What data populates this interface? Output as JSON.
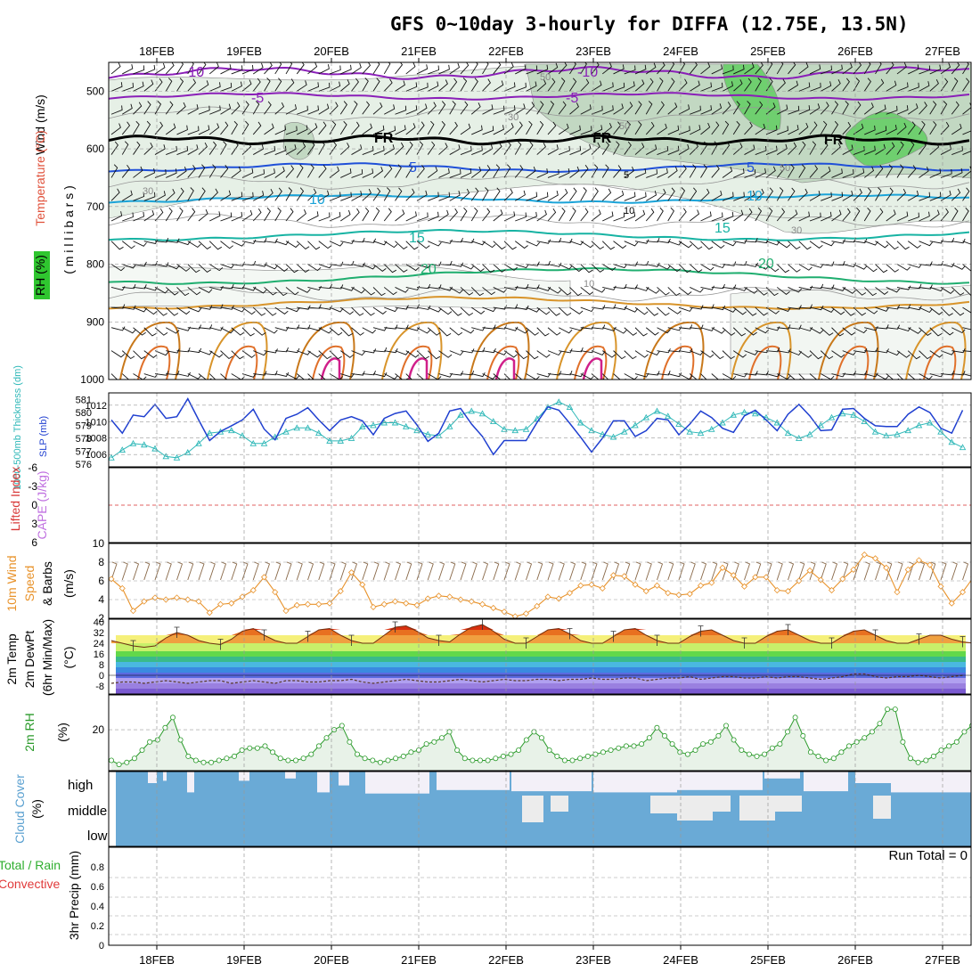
{
  "title": "GFS 0~10day 3-hourly for DIFFA (12.75E, 13.5N)",
  "dates": [
    "18FEB",
    "19FEB",
    "20FEB",
    "21FEB",
    "22FEB",
    "23FEB",
    "24FEB",
    "25FEB",
    "26FEB",
    "27FEB"
  ],
  "colors": {
    "temp_contour_purple": "#8a1fb8",
    "freezing_line": "#000000",
    "temp_contour_blue": "#1f4fd8",
    "temp_contour_cyan": "#1aa3d8",
    "temp_contour_teal": "#17b3a3",
    "temp_contour_green": "#1fae6f",
    "temp_contour_orange": "#d8942a",
    "temp_contour_magenta": "#d01f8a",
    "rh_light": "#e6f0e6",
    "rh_mid": "#c2d8c2",
    "rh_high": "#6fcf6f",
    "slp_line": "#1f3fd0",
    "thickness_line": "#2fb8b8",
    "wind_speed_line": "#e8922a",
    "rh2m_line": "#2a9a2a",
    "cloud_fill": "#6aaad6",
    "grid": "#999999"
  },
  "panels": {
    "upper": {
      "ylabel_wind": "Wind (m/s)",
      "ylabel_temp": "Temperature (°C)",
      "ylabel_rh": "RH (%)",
      "ylabel_units": "( m i l l i b a r s )",
      "y_ticks": [
        "500",
        "600",
        "700",
        "800",
        "900",
        "1000"
      ],
      "contour_labels": [
        "-10",
        "-5",
        "FR",
        "5",
        "10",
        "15",
        "20",
        "-10",
        "-5",
        "FR",
        "5",
        "10",
        "15",
        "20",
        "FR",
        "5",
        "10",
        "50",
        "30",
        "10",
        "30",
        "50",
        "50",
        "30"
      ]
    },
    "slp": {
      "ylabel_left": "1000-500mb Thickness (dm)",
      "ylabel_right": "SLP (mb)",
      "left_ticks": [
        "581",
        "580",
        "579",
        "578",
        "577",
        "576"
      ],
      "right_ticks": [
        "1012",
        "1010",
        "1008",
        "1006"
      ]
    },
    "cape": {
      "ylabel_left": "Lifted Index",
      "ylabel_right": "CAPE (J/kg)",
      "ticks": [
        "-6",
        "-3",
        "0",
        "3",
        "6"
      ]
    },
    "wind10": {
      "ylabel": "10m Wind Speed & Barbs (m/s)",
      "ylabel_a": "10m Wind",
      "ylabel_b": "Speed",
      "ylabel_c": "& Barbs",
      "ylabel_d": "(m/s)",
      "ticks": [
        "10",
        "8",
        "6",
        "4",
        "2"
      ]
    },
    "temp2m": {
      "ylabel_a": "2m Temp",
      "ylabel_b": "2m DewPt",
      "ylabel_c": "(6hr Min/Max)",
      "ylabel_d": "(°C)",
      "ticks": [
        "40",
        "32",
        "24",
        "16",
        "8",
        "0",
        "-8"
      ]
    },
    "rh2m": {
      "ylabel_a": "2m RH",
      "ylabel_b": "(%)",
      "ticks": [
        "20"
      ]
    },
    "cloud": {
      "ylabel_a": "Cloud Cover",
      "ylabel_b": "(%)",
      "levels": [
        "high",
        "middle",
        "low"
      ]
    },
    "precip": {
      "ylabel_a": "Total / Rain",
      "ylabel_b": "Convective",
      "ylabel_c": "3hr Precip (mm)",
      "ticks": [
        "0.8",
        "0.6",
        "0.4",
        "0.2",
        "0"
      ],
      "run_total": "Run Total = 0"
    }
  },
  "chart_data": [
    {
      "type": "line",
      "title": "1000-500mb Thickness (dm) / SLP (mb)",
      "x_unit": "3-hourly steps from 17FEB 12Z",
      "series": [
        {
          "name": "SLP (mb)",
          "values": [
            1010.2,
            1008.6,
            1010.8,
            1010.6,
            1012.1,
            1010.4,
            1010.6,
            1012.8,
            1010.2,
            1007.7,
            1008.8,
            1009.5,
            1010.2,
            1011.5,
            1009.1,
            1007.8,
            1010.4,
            1010.9,
            1011.7,
            1010.2,
            1008.9,
            1010.2,
            1010.6,
            1010.1,
            1008.4,
            1010.4,
            1011.0,
            1011.3,
            1009.6,
            1007.6,
            1008.6,
            1011.3,
            1011.6,
            1009.7,
            1008.2,
            1006.0,
            1007.7,
            1007.7,
            1007.7,
            1009.9,
            1011.8,
            1011.4,
            1009.8,
            1008.1,
            1006.3,
            1008.0,
            1010.1,
            1010.1,
            1008.2,
            1008.9,
            1010.4,
            1010.2,
            1008.4,
            1009.7,
            1011.3,
            1010.5,
            1009.2,
            1008.7,
            1010.7,
            1011.4,
            1010.2,
            1008.9,
            1010.9,
            1012.1,
            1010.7,
            1008.9,
            1009.0,
            1011.5,
            1011.6,
            1010.4,
            1009.5,
            1009.4,
            1009.4,
            1010.9,
            1011.8,
            1011.1,
            1009.2,
            1008.6,
            1011.4
          ]
        },
        {
          "name": "1000-500mb Thickness (dm)",
          "values": [
            576.5,
            577.1,
            577.6,
            577.5,
            577.2,
            576.6,
            576.5,
            576.9,
            577.6,
            578.4,
            578.5,
            578.6,
            578.2,
            577.6,
            577.6,
            578.1,
            578.5,
            578.8,
            578.8,
            578.4,
            577.8,
            577.8,
            578.0,
            578.9,
            579.0,
            579.2,
            579.2,
            578.9,
            578.6,
            578.3,
            578.2,
            578.9,
            579.8,
            580.1,
            579.9,
            579.3,
            578.7,
            578.6,
            578.7,
            579.5,
            580.4,
            580.8,
            580.4,
            579.2,
            578.6,
            578.3,
            578.1,
            578.5,
            579.0,
            579.6,
            580.1,
            579.7,
            579.1,
            578.5,
            578.4,
            578.7,
            579.2,
            579.8,
            580.0,
            579.9,
            579.6,
            579.2,
            578.4,
            578.0,
            578.3,
            579.0,
            579.6,
            579.9,
            579.8,
            579.3,
            578.5,
            578.2,
            578.3,
            578.6,
            579.0,
            579.2,
            578.5,
            577.7,
            577.3
          ]
        }
      ],
      "ylim_left": [
        575.8,
        581.5
      ],
      "ylim_right": [
        1004.5,
        1013.5
      ]
    },
    {
      "type": "line",
      "title": "10m Wind Speed & Barbs (m/s)",
      "series": [
        {
          "name": "10m Wind Speed",
          "values": [
            6.2,
            5.2,
            2.8,
            3.8,
            4.2,
            4.0,
            4.2,
            4.0,
            3.8,
            2.6,
            3.5,
            3.6,
            4.3,
            5.0,
            6.4,
            4.8,
            2.8,
            3.4,
            3.5,
            3.5,
            3.6,
            4.9,
            6.9,
            5.6,
            3.2,
            3.5,
            3.8,
            3.6,
            3.4,
            4.1,
            4.4,
            4.3,
            4.0,
            3.8,
            3.5,
            3.1,
            2.7,
            2.2,
            2.5,
            3.3,
            4.3,
            4.1,
            4.7,
            5.5,
            5.6,
            5.2,
            6.6,
            6.5,
            5.6,
            4.9,
            5.5,
            4.7,
            4.5,
            4.6,
            5.5,
            5.8,
            7.4,
            6.6,
            5.4,
            6.4,
            6.4,
            5.0,
            4.9,
            6.0,
            7.1,
            6.1,
            5.0,
            6.2,
            7.2,
            8.8,
            8.4,
            7.4,
            4.8,
            7.2,
            8.2,
            7.7,
            5.4,
            3.6,
            4.8,
            6.4,
            7.0,
            8.2
          ]
        }
      ],
      "ylim": [
        2,
        10
      ]
    },
    {
      "type": "area",
      "title": "2m Temp / 2m DewPt (6hr Min/Max) (°C)",
      "series": [
        {
          "name": "2m Temp",
          "values": [
            26,
            24,
            22,
            21,
            22,
            28,
            32,
            30,
            26,
            24,
            23,
            27,
            33,
            35,
            30,
            26,
            24,
            24,
            29,
            34,
            35,
            30,
            26,
            24,
            24,
            30,
            36,
            37,
            33,
            28,
            26,
            25,
            31,
            36,
            38,
            33,
            27,
            24,
            24,
            29,
            34,
            35,
            31,
            26,
            24,
            24,
            29,
            34,
            35,
            30,
            26,
            24,
            24,
            29,
            33,
            34,
            30,
            26,
            24,
            24,
            29,
            33,
            34,
            30,
            26,
            24,
            24,
            29,
            33,
            34,
            30,
            26,
            24,
            24,
            27,
            30,
            30,
            27,
            25,
            24
          ]
        },
        {
          "name": "2m DewPt",
          "values": [
            -6,
            -5,
            -5,
            -6,
            -5,
            -4,
            -5,
            -6,
            -5,
            -4,
            -4,
            -6,
            -5,
            -4,
            -5,
            -6,
            -4,
            -4,
            -5,
            -5,
            -4,
            -4,
            -3,
            -5,
            -6,
            -5,
            -4,
            -3,
            -4,
            -5,
            -5,
            -4,
            -3,
            -4,
            -5,
            -4,
            -3,
            -4,
            -4,
            -3,
            -3,
            -4,
            -3,
            -3,
            -2,
            -3,
            -3,
            -2,
            -2,
            -4,
            -3,
            -2,
            -2,
            -1,
            -3,
            -2,
            -1,
            -1,
            -2,
            -2,
            -1,
            -2,
            -1,
            -1,
            -2,
            -3,
            -2,
            -1,
            1,
            1,
            -1,
            -2,
            -1,
            -1,
            0,
            -1,
            -2,
            -1,
            0
          ]
        }
      ],
      "ylim": [
        -14,
        42
      ]
    },
    {
      "type": "area",
      "title": "2m RH (%)",
      "series": [
        {
          "name": "2m RH",
          "values": [
            5,
            3,
            4,
            6,
            10,
            14,
            15,
            21,
            26,
            15,
            7,
            5,
            4,
            4,
            5,
            6,
            7,
            10,
            11,
            11,
            12,
            9,
            6,
            5,
            5,
            6,
            8,
            12,
            16,
            20,
            22,
            14,
            8,
            6,
            5,
            4,
            5,
            6,
            7,
            9,
            10,
            13,
            14,
            16,
            19,
            10,
            6,
            5,
            5,
            5,
            6,
            7,
            8,
            10,
            15,
            19,
            16,
            10,
            7,
            5,
            5,
            6,
            7,
            8,
            9,
            10,
            11,
            12,
            12,
            13,
            16,
            21,
            17,
            13,
            9,
            8,
            10,
            13,
            14,
            17,
            22,
            15,
            10,
            8,
            7,
            8,
            11,
            13,
            19,
            26,
            17,
            9,
            7,
            5,
            6,
            9,
            12,
            14,
            16,
            19,
            23,
            30,
            30,
            14,
            6,
            4,
            5,
            7,
            10,
            12,
            14,
            19,
            22
          ]
        }
      ],
      "ylim": [
        0,
        37
      ]
    },
    {
      "type": "line",
      "title": "3hr Precip (mm)",
      "series": [
        {
          "name": "Total / Rain",
          "values": [
            0,
            0,
            0,
            0,
            0,
            0,
            0,
            0,
            0,
            0
          ]
        }
      ],
      "ylim": [
        0,
        1
      ]
    }
  ]
}
